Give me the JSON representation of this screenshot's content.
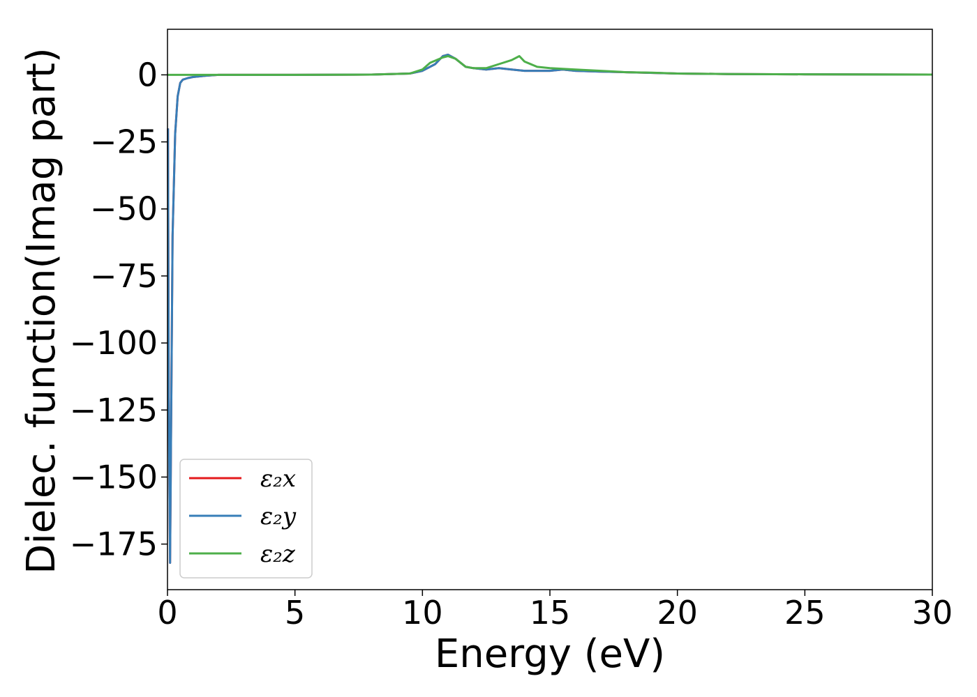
{
  "chart_data": {
    "type": "line",
    "xlabel": "Energy (eV)",
    "ylabel": "Dielec. function(Imag part)",
    "xlim": [
      0,
      30
    ],
    "ylim": [
      -192,
      17
    ],
    "xticks": [
      0,
      5,
      10,
      15,
      20,
      25,
      30
    ],
    "yticks": [
      0,
      -25,
      -50,
      -75,
      -100,
      -125,
      -150,
      -175
    ],
    "ytick_labels": [
      "0",
      "−25",
      "−50",
      "−75",
      "−100",
      "−125",
      "−150",
      "−175"
    ],
    "grid": false,
    "legend_position": "lower-left",
    "series": [
      {
        "name": "ε₂x",
        "color": "#e41a1c",
        "points": [
          [
            0.02,
            -20
          ],
          [
            0.05,
            -120
          ],
          [
            0.1,
            -182
          ],
          [
            0.15,
            -120
          ],
          [
            0.2,
            -60
          ],
          [
            0.3,
            -22
          ],
          [
            0.4,
            -8
          ],
          [
            0.5,
            -3
          ],
          [
            0.6,
            -1.8
          ],
          [
            0.8,
            -1.2
          ],
          [
            1.0,
            -0.8
          ],
          [
            1.5,
            -0.3
          ],
          [
            2,
            0
          ],
          [
            5,
            0
          ],
          [
            8,
            0.1
          ],
          [
            9.5,
            0.5
          ],
          [
            10,
            1.5
          ],
          [
            10.5,
            4
          ],
          [
            10.8,
            7
          ],
          [
            11,
            7.5
          ],
          [
            11.3,
            6
          ],
          [
            11.7,
            3
          ],
          [
            12,
            2.5
          ],
          [
            12.5,
            2
          ],
          [
            13,
            2.5
          ],
          [
            13.5,
            2
          ],
          [
            14,
            1.5
          ],
          [
            15,
            1.5
          ],
          [
            15.5,
            2
          ],
          [
            16,
            1.5
          ],
          [
            17,
            1.2
          ],
          [
            18,
            1
          ],
          [
            20,
            0.5
          ],
          [
            22,
            0.3
          ],
          [
            25,
            0.2
          ],
          [
            30,
            0.1
          ]
        ]
      },
      {
        "name": "ε₂y",
        "color": "#377eb8",
        "points": [
          [
            0.02,
            -20
          ],
          [
            0.05,
            -120
          ],
          [
            0.1,
            -182
          ],
          [
            0.15,
            -120
          ],
          [
            0.2,
            -60
          ],
          [
            0.3,
            -22
          ],
          [
            0.4,
            -8
          ],
          [
            0.5,
            -3
          ],
          [
            0.6,
            -1.8
          ],
          [
            0.8,
            -1.2
          ],
          [
            1.0,
            -0.8
          ],
          [
            1.5,
            -0.3
          ],
          [
            2,
            0
          ],
          [
            5,
            0
          ],
          [
            8,
            0.1
          ],
          [
            9.5,
            0.5
          ],
          [
            10,
            1.5
          ],
          [
            10.5,
            4
          ],
          [
            10.8,
            7
          ],
          [
            11,
            7.5
          ],
          [
            11.3,
            6
          ],
          [
            11.7,
            3
          ],
          [
            12,
            2.5
          ],
          [
            12.5,
            2
          ],
          [
            13,
            2.5
          ],
          [
            13.5,
            2
          ],
          [
            14,
            1.5
          ],
          [
            15,
            1.5
          ],
          [
            15.5,
            2
          ],
          [
            16,
            1.5
          ],
          [
            17,
            1.2
          ],
          [
            18,
            1
          ],
          [
            20,
            0.5
          ],
          [
            22,
            0.3
          ],
          [
            25,
            0.2
          ],
          [
            30,
            0.1
          ]
        ]
      },
      {
        "name": "ε₂z",
        "color": "#4daf4a",
        "points": [
          [
            0,
            0
          ],
          [
            2,
            0
          ],
          [
            5,
            0
          ],
          [
            8,
            0.1
          ],
          [
            9.5,
            0.5
          ],
          [
            10,
            2
          ],
          [
            10.3,
            4.5
          ],
          [
            10.8,
            6.5
          ],
          [
            11,
            7
          ],
          [
            11.3,
            6
          ],
          [
            11.7,
            3
          ],
          [
            12,
            2.5
          ],
          [
            12.5,
            2.5
          ],
          [
            13,
            4
          ],
          [
            13.5,
            5.5
          ],
          [
            13.8,
            7
          ],
          [
            14,
            5
          ],
          [
            14.5,
            3
          ],
          [
            15,
            2.5
          ],
          [
            16,
            2
          ],
          [
            17,
            1.5
          ],
          [
            18,
            1
          ],
          [
            19,
            0.8
          ],
          [
            20,
            0.5
          ],
          [
            22,
            0.3
          ],
          [
            25,
            0.2
          ],
          [
            30,
            0.1
          ]
        ]
      }
    ]
  }
}
